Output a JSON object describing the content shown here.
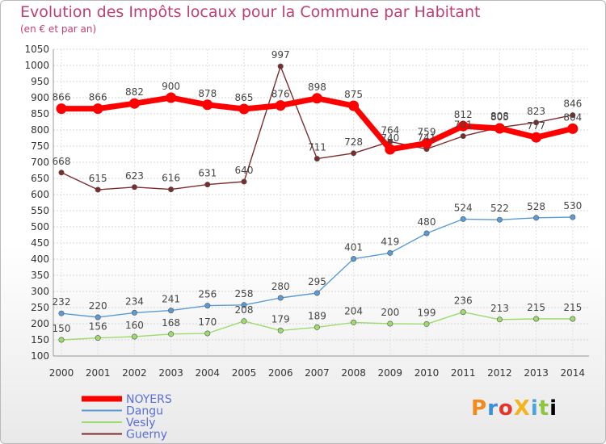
{
  "chart_data": {
    "type": "line",
    "title": "Evolution des Impôts locaux pour la Commune par Habitant",
    "subtitle": "(en € et par an)",
    "x": [
      "2000",
      "2001",
      "2002",
      "2003",
      "2004",
      "2005",
      "2006",
      "2007",
      "2008",
      "2009",
      "2010",
      "2011",
      "2012",
      "2013",
      "2014"
    ],
    "ylim": [
      100,
      1050
    ],
    "yticks": [
      100,
      150,
      200,
      250,
      300,
      350,
      400,
      450,
      500,
      550,
      600,
      650,
      700,
      750,
      800,
      850,
      900,
      950,
      1000,
      1050
    ],
    "grid": true,
    "legend_position": "bottom-left",
    "series": [
      {
        "name": "NOYERS",
        "color": "#ff0000",
        "values": [
          866,
          866,
          882,
          900,
          878,
          865,
          876,
          898,
          875,
          740,
          759,
          812,
          805,
          777,
          804
        ],
        "labels": [
          "866",
          "866",
          "882",
          "900",
          "878",
          "865",
          "876",
          "898",
          "875",
          "740",
          "759",
          "812",
          "805",
          "777",
          "804"
        ]
      },
      {
        "name": "Dangu",
        "color": "#5b9bd5",
        "values": [
          232,
          220,
          234,
          241,
          256,
          258,
          280,
          295,
          401,
          419,
          480,
          524,
          522,
          528,
          530
        ],
        "labels": [
          "232",
          "220",
          "234",
          "241",
          "256",
          "258",
          "280",
          "295",
          "401",
          "419",
          "480",
          "524",
          "522",
          "528",
          "530"
        ]
      },
      {
        "name": "Vesly",
        "color": "#9ddb6f",
        "values": [
          150,
          156,
          160,
          168,
          170,
          208,
          179,
          189,
          204,
          200,
          199,
          236,
          213,
          215,
          215
        ],
        "labels": [
          "150",
          "156",
          "160",
          "168",
          "170",
          "208",
          "179",
          "189",
          "204",
          "200",
          "199",
          "236",
          "213",
          "215",
          "215"
        ]
      },
      {
        "name": "Guerny",
        "color": "#7b2d2d",
        "values": [
          668,
          615,
          623,
          616,
          631,
          640,
          997,
          711,
          728,
          764,
          741,
          781,
          808,
          823,
          846
        ],
        "labels": [
          "668",
          "615",
          "623",
          "616",
          "631",
          "640",
          "997",
          "711",
          "728",
          "764",
          "741",
          "781",
          "808",
          "823",
          "846"
        ]
      }
    ]
  },
  "logo_text": "ProXiti"
}
